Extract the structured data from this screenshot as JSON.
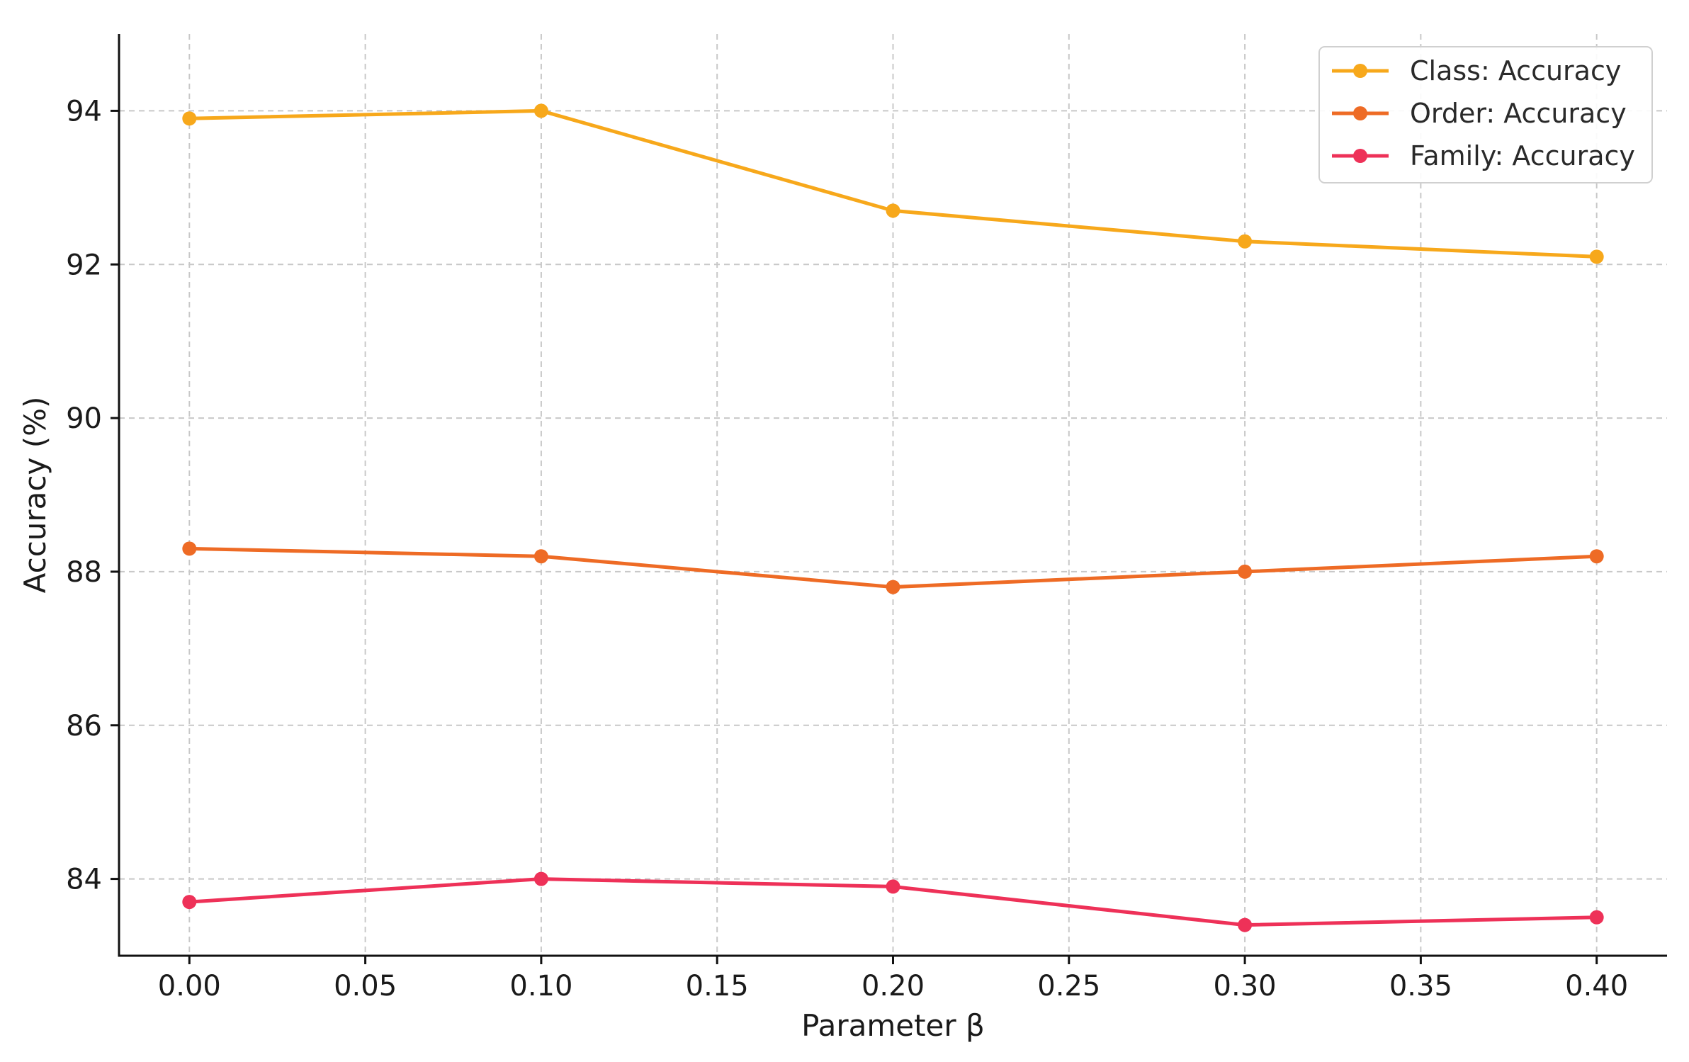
{
  "chart_data": {
    "type": "line",
    "title": "",
    "xlabel": "Parameter β",
    "ylabel": "Accuracy (%)",
    "xlim": [
      -0.02,
      0.42
    ],
    "ylim": [
      83.0,
      95.0
    ],
    "x_ticks": [
      "0.00",
      "0.05",
      "0.10",
      "0.15",
      "0.20",
      "0.25",
      "0.30",
      "0.35",
      "0.40"
    ],
    "y_ticks": [
      "84",
      "86",
      "88",
      "90",
      "92",
      "94"
    ],
    "grid": true,
    "legend_position": "top-right",
    "x": [
      0.0,
      0.1,
      0.2,
      0.3,
      0.4
    ],
    "series": [
      {
        "name": "Class: Accuracy",
        "color": "#F7A81B",
        "values": [
          93.9,
          94.0,
          92.7,
          92.3,
          92.1
        ]
      },
      {
        "name": "Order: Accuracy",
        "color": "#EE6B25",
        "values": [
          88.3,
          88.2,
          87.8,
          88.0,
          88.2
        ]
      },
      {
        "name": "Family: Accuracy",
        "color": "#EE3158",
        "values": [
          83.7,
          84.0,
          83.9,
          83.4,
          83.5
        ]
      }
    ]
  }
}
